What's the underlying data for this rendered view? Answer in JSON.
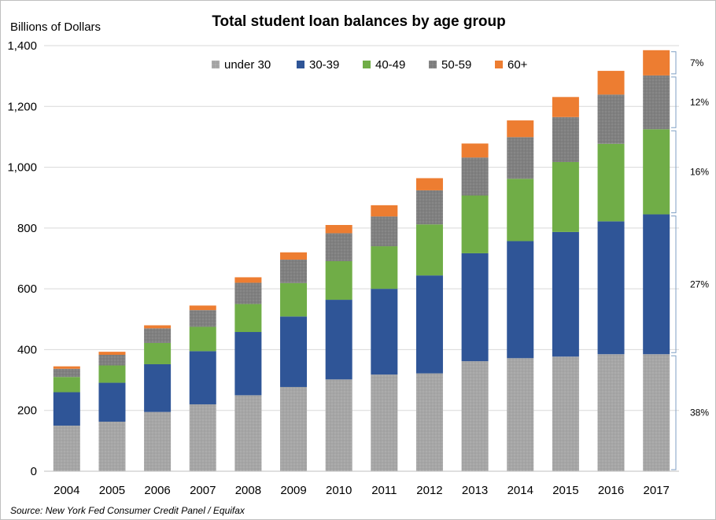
{
  "chart_data": {
    "type": "bar",
    "stacked": true,
    "title": "Total student loan balances by age group",
    "ylabel": "Billions of Dollars",
    "xlabel": "",
    "ylim": [
      0,
      1400
    ],
    "yticks": [
      0,
      200,
      400,
      600,
      800,
      1000,
      1200,
      1400
    ],
    "ytick_labels": [
      "0",
      "200",
      "400",
      "600",
      "800",
      "1,000",
      "1,200",
      "1,400"
    ],
    "grid": true,
    "legend_position": "top-center",
    "categories": [
      "2004",
      "2005",
      "2006",
      "2007",
      "2008",
      "2009",
      "2010",
      "2011",
      "2012",
      "2013",
      "2014",
      "2015",
      "2016",
      "2017"
    ],
    "series": [
      {
        "name": "under 30",
        "color": "#a6a6a6",
        "pattern": "dots",
        "values": [
          150,
          163,
          195,
          220,
          250,
          277,
          302,
          318,
          322,
          362,
          372,
          377,
          385,
          385
        ]
      },
      {
        "name": "30-39",
        "color": "#2f5597",
        "pattern": "solid",
        "values": [
          110,
          128,
          157,
          175,
          208,
          232,
          262,
          282,
          322,
          355,
          385,
          410,
          437,
          460
        ]
      },
      {
        "name": "40-49",
        "color": "#70ad47",
        "pattern": "solid",
        "values": [
          50,
          57,
          70,
          80,
          92,
          110,
          127,
          140,
          168,
          190,
          205,
          230,
          255,
          280
        ]
      },
      {
        "name": "50-59",
        "color": "#808080",
        "pattern": "dots",
        "values": [
          27,
          35,
          48,
          55,
          70,
          77,
          92,
          98,
          112,
          125,
          137,
          148,
          162,
          177
        ]
      },
      {
        "name": "60+",
        "color": "#ed7d31",
        "pattern": "solid",
        "values": [
          8,
          10,
          10,
          15,
          18,
          24,
          27,
          37,
          40,
          46,
          55,
          66,
          78,
          83
        ]
      }
    ],
    "annotations": [
      {
        "label": "38%",
        "range": [
          0,
          385
        ]
      },
      {
        "label": "27%",
        "range": [
          385,
          845
        ]
      },
      {
        "label": "16%",
        "range": [
          845,
          1125
        ]
      },
      {
        "label": "12%",
        "range": [
          1125,
          1302
        ]
      },
      {
        "label": "7%",
        "range": [
          1302,
          1385
        ]
      }
    ],
    "source": "Source: New York Fed Consumer Credit Panel / Equifax"
  }
}
